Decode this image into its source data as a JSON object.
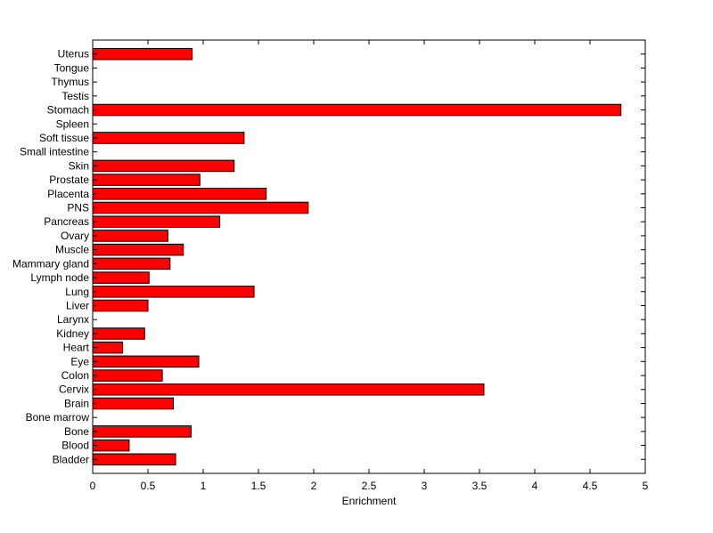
{
  "chart_data": {
    "type": "bar",
    "orientation": "horizontal",
    "xlabel": "Enrichment",
    "ylabel": "",
    "xlim": [
      0,
      5
    ],
    "x_ticks": [
      0,
      0.5,
      1,
      1.5,
      2,
      2.5,
      3,
      3.5,
      4,
      4.5,
      5
    ],
    "x_tick_labels": [
      "0",
      "0.5",
      "1",
      "1.5",
      "2",
      "2.5",
      "3",
      "3.5",
      "4",
      "4.5",
      "5"
    ],
    "grid": false,
    "categories": [
      "Bladder",
      "Blood",
      "Bone",
      "Bone marrow",
      "Brain",
      "Cervix",
      "Colon",
      "Eye",
      "Heart",
      "Kidney",
      "Larynx",
      "Liver",
      "Lung",
      "Lymph node",
      "Mammary gland",
      "Muscle",
      "Ovary",
      "Pancreas",
      "PNS",
      "Placenta",
      "Prostate",
      "Skin",
      "Small intestine",
      "Soft tissue",
      "Spleen",
      "Stomach",
      "Testis",
      "Thymus",
      "Tongue",
      "Uterus"
    ],
    "values": [
      0.75,
      0.33,
      0.89,
      0,
      0.73,
      3.54,
      0.63,
      0.96,
      0.27,
      0.47,
      0,
      0.5,
      1.46,
      0.51,
      0.7,
      0.82,
      0.68,
      1.15,
      1.95,
      1.57,
      0.97,
      1.28,
      0,
      1.37,
      0,
      4.78,
      0,
      0,
      0,
      0.9
    ],
    "bar_color": "#ff0000",
    "edge_color": "#000000"
  }
}
